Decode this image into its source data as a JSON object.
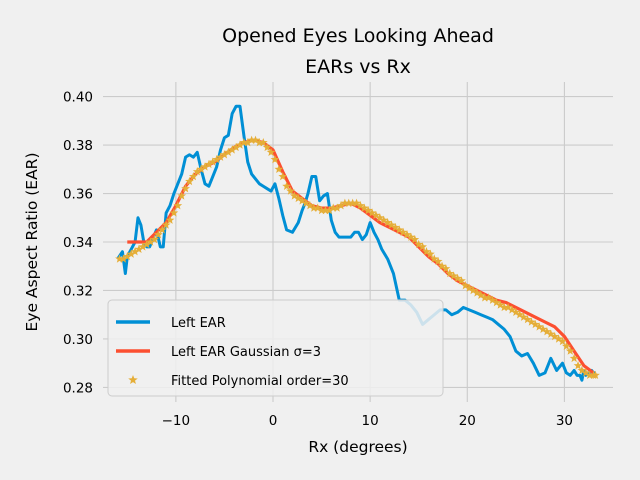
{
  "chart_data": {
    "type": "line",
    "title": "Opened Eyes Looking Ahead",
    "subtitle": "EARs vs Rx",
    "xlabel": "Rx (degrees)",
    "ylabel": "Eye Aspect Ratio (EAR)",
    "xlim": [
      -17.5,
      35
    ],
    "ylim": [
      0.274,
      0.406
    ],
    "xticks": [
      -10,
      0,
      10,
      20,
      30
    ],
    "yticks": [
      0.28,
      0.3,
      0.32,
      0.34,
      0.36,
      0.38,
      0.4
    ],
    "xtick_labels": [
      "−10",
      "0",
      "10",
      "20",
      "30"
    ],
    "ytick_labels": [
      "0.28",
      "0.30",
      "0.32",
      "0.34",
      "0.36",
      "0.38",
      "0.40"
    ],
    "grid": true,
    "legend_position": "lower-left",
    "series": [
      {
        "name": "Left EAR",
        "color": "#008fd5",
        "style": "line",
        "x": [
          -16,
          -15.5,
          -15.2,
          -15,
          -14.6,
          -14.2,
          -13.9,
          -13.6,
          -13.3,
          -13,
          -12.7,
          -12.4,
          -12,
          -11.6,
          -11.3,
          -11,
          -10.6,
          -10.2,
          -9.8,
          -9.4,
          -9,
          -8.6,
          -8.2,
          -7.8,
          -7.4,
          -7,
          -6.6,
          -6.2,
          -5.8,
          -5.4,
          -5,
          -4.6,
          -4.2,
          -3.8,
          -3.4,
          -3,
          -2.6,
          -2.2,
          -1.8,
          -1.4,
          -1,
          -0.6,
          -0.2,
          0.2,
          0.6,
          1,
          1.4,
          2,
          2.6,
          3,
          3.3,
          3.6,
          4,
          4.4,
          4.8,
          5.2,
          5.6,
          6,
          6.4,
          6.8,
          7.2,
          7.6,
          8,
          8.4,
          8.8,
          9.2,
          9.6,
          10,
          10.4,
          10.8,
          11.2,
          11.8,
          12.4,
          13,
          13.6,
          14.2,
          14.8,
          15.4,
          16,
          16.6,
          17.2,
          17.8,
          18.4,
          19,
          19.6,
          20.2,
          20.8,
          21.4,
          22,
          22.6,
          23.2,
          23.8,
          24.4,
          25,
          25.6,
          26.2,
          26.8,
          27.4,
          28,
          28.6,
          29.2,
          29.8,
          30.2,
          30.6,
          31,
          31.3,
          31.6,
          31.8,
          32,
          32.2,
          32.4,
          32.6,
          32.8,
          33,
          33.2
        ],
        "y": [
          0.333,
          0.336,
          0.327,
          0.334,
          0.337,
          0.34,
          0.35,
          0.347,
          0.34,
          0.338,
          0.338,
          0.341,
          0.345,
          0.338,
          0.338,
          0.352,
          0.355,
          0.36,
          0.364,
          0.368,
          0.375,
          0.376,
          0.375,
          0.377,
          0.37,
          0.364,
          0.363,
          0.367,
          0.371,
          0.378,
          0.383,
          0.384,
          0.393,
          0.396,
          0.396,
          0.384,
          0.373,
          0.368,
          0.366,
          0.364,
          0.363,
          0.362,
          0.361,
          0.364,
          0.358,
          0.351,
          0.345,
          0.344,
          0.348,
          0.353,
          0.356,
          0.36,
          0.367,
          0.367,
          0.357,
          0.359,
          0.36,
          0.349,
          0.344,
          0.342,
          0.342,
          0.342,
          0.342,
          0.344,
          0.344,
          0.341,
          0.343,
          0.348,
          0.344,
          0.341,
          0.337,
          0.333,
          0.327,
          0.316,
          0.316,
          0.314,
          0.311,
          0.306,
          0.308,
          0.31,
          0.312,
          0.312,
          0.31,
          0.311,
          0.313,
          0.312,
          0.311,
          0.31,
          0.309,
          0.308,
          0.306,
          0.304,
          0.301,
          0.295,
          0.293,
          0.294,
          0.29,
          0.285,
          0.286,
          0.292,
          0.287,
          0.29,
          0.286,
          0.285,
          0.287,
          0.285,
          0.285,
          0.283,
          0.287,
          0.285,
          0.286,
          0.286,
          0.287,
          0.286,
          0.286
        ]
      },
      {
        "name": "Left EAR Gaussian σ=3",
        "color": "#fc4f30",
        "style": "line",
        "x": [
          -15,
          -14,
          -13,
          -12,
          -11,
          -10,
          -9,
          -8,
          -7,
          -6,
          -5,
          -4,
          -3,
          -2,
          -1,
          0,
          1,
          2,
          3,
          4,
          5,
          6,
          7,
          8,
          9,
          10,
          11,
          12,
          13,
          14,
          15,
          16,
          17,
          18,
          19,
          20,
          21,
          22,
          23,
          24,
          25,
          26,
          27,
          28,
          29,
          30,
          31,
          32,
          33
        ],
        "y": [
          0.34,
          0.34,
          0.34,
          0.344,
          0.348,
          0.355,
          0.363,
          0.368,
          0.371,
          0.373,
          0.376,
          0.379,
          0.381,
          0.382,
          0.381,
          0.378,
          0.369,
          0.361,
          0.358,
          0.355,
          0.354,
          0.354,
          0.355,
          0.356,
          0.354,
          0.351,
          0.348,
          0.346,
          0.344,
          0.342,
          0.338,
          0.334,
          0.331,
          0.327,
          0.324,
          0.322,
          0.32,
          0.318,
          0.316,
          0.315,
          0.313,
          0.311,
          0.309,
          0.307,
          0.305,
          0.301,
          0.295,
          0.289,
          0.286
        ]
      },
      {
        "name": "Fitted Polynomial order=30",
        "color": "#e5ae38",
        "style": "markers",
        "x": [
          -15.8,
          -15.4,
          -15,
          -14.6,
          -14.2,
          -13.8,
          -13.4,
          -13,
          -12.6,
          -12.2,
          -11.8,
          -11.4,
          -11,
          -10.6,
          -10.2,
          -9.8,
          -9.4,
          -9,
          -8.6,
          -8.2,
          -7.8,
          -7.4,
          -7,
          -6.6,
          -6.2,
          -5.8,
          -5.4,
          -5,
          -4.6,
          -4.2,
          -3.8,
          -3.4,
          -3,
          -2.6,
          -2.2,
          -1.8,
          -1.4,
          -1,
          -0.6,
          -0.2,
          0.2,
          0.6,
          1,
          1.4,
          1.8,
          2.2,
          2.6,
          3,
          3.4,
          3.8,
          4.2,
          4.6,
          5,
          5.4,
          5.8,
          6.2,
          6.6,
          7,
          7.4,
          7.8,
          8.2,
          8.6,
          9,
          9.4,
          9.8,
          10.2,
          10.6,
          11,
          11.4,
          11.8,
          12.2,
          12.6,
          13,
          13.4,
          13.8,
          14.2,
          14.6,
          15,
          15.4,
          15.8,
          16.2,
          16.6,
          17,
          17.4,
          17.8,
          18.2,
          18.6,
          19,
          19.4,
          19.8,
          20.2,
          20.6,
          21,
          21.4,
          21.8,
          22.2,
          22.6,
          23,
          23.4,
          23.8,
          24.2,
          24.6,
          25,
          25.4,
          25.8,
          26.2,
          26.6,
          27,
          27.4,
          27.8,
          28.2,
          28.6,
          29,
          29.4,
          29.8,
          30.2,
          30.6,
          31,
          31.4,
          31.8,
          32.2,
          32.6,
          33,
          33.2
        ],
        "y": [
          0.333,
          0.333,
          0.334,
          0.335,
          0.336,
          0.337,
          0.338,
          0.339,
          0.34,
          0.341,
          0.343,
          0.345,
          0.347,
          0.349,
          0.352,
          0.355,
          0.359,
          0.362,
          0.365,
          0.367,
          0.369,
          0.37,
          0.371,
          0.372,
          0.373,
          0.374,
          0.375,
          0.376,
          0.377,
          0.378,
          0.379,
          0.38,
          0.381,
          0.381,
          0.382,
          0.382,
          0.381,
          0.381,
          0.379,
          0.377,
          0.374,
          0.37,
          0.367,
          0.363,
          0.361,
          0.359,
          0.358,
          0.357,
          0.356,
          0.355,
          0.354,
          0.354,
          0.353,
          0.353,
          0.353,
          0.354,
          0.354,
          0.355,
          0.356,
          0.356,
          0.356,
          0.356,
          0.355,
          0.354,
          0.353,
          0.352,
          0.351,
          0.35,
          0.349,
          0.348,
          0.347,
          0.346,
          0.345,
          0.344,
          0.343,
          0.342,
          0.341,
          0.339,
          0.338,
          0.336,
          0.335,
          0.333,
          0.332,
          0.33,
          0.329,
          0.327,
          0.326,
          0.325,
          0.324,
          0.322,
          0.321,
          0.32,
          0.319,
          0.318,
          0.317,
          0.317,
          0.316,
          0.315,
          0.314,
          0.313,
          0.313,
          0.312,
          0.311,
          0.31,
          0.309,
          0.308,
          0.307,
          0.306,
          0.305,
          0.304,
          0.303,
          0.302,
          0.301,
          0.3,
          0.299,
          0.297,
          0.295,
          0.292,
          0.289,
          0.287,
          0.286,
          0.285,
          0.285,
          0.285
        ]
      }
    ]
  }
}
